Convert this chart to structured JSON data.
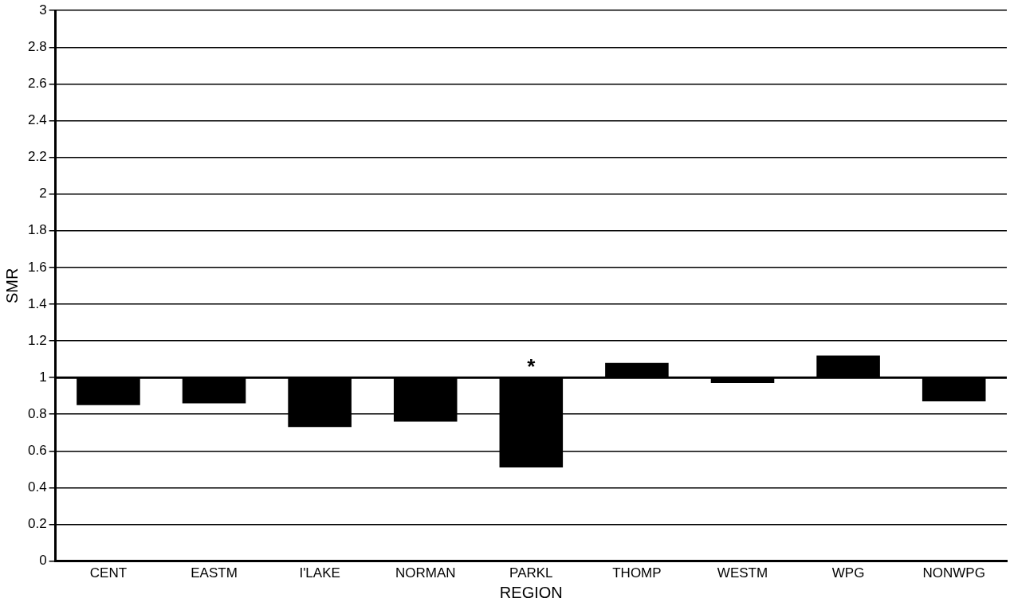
{
  "chart_data": {
    "type": "bar",
    "xlabel": "REGION",
    "ylabel": "SMR",
    "categories": [
      "CENT",
      "EASTM",
      "I'LAKE",
      "NORMAN",
      "PARKL",
      "THOMP",
      "WESTM",
      "WPG",
      "NONWPG"
    ],
    "values": [
      -0.15,
      -0.14,
      -0.27,
      -0.24,
      -0.49,
      0.08,
      -0.03,
      0.12,
      -0.13
    ],
    "base": [
      1,
      1,
      1,
      1,
      1,
      1,
      1,
      1,
      1
    ],
    "color": "#000000",
    "ylim": [
      0,
      3
    ],
    "yticks": [
      0,
      0.2,
      0.4,
      0.6,
      0.8,
      1,
      1.2,
      1.4,
      1.6,
      1.8,
      2,
      2.2,
      2.4,
      2.6,
      2.8,
      3
    ],
    "grid": "y",
    "legend": false,
    "ref_lines": [
      {
        "axis": "y",
        "value": 1,
        "color": "#000000"
      }
    ],
    "annotations": [
      {
        "text": "*",
        "x": "PARKL",
        "y": 1
      }
    ]
  }
}
